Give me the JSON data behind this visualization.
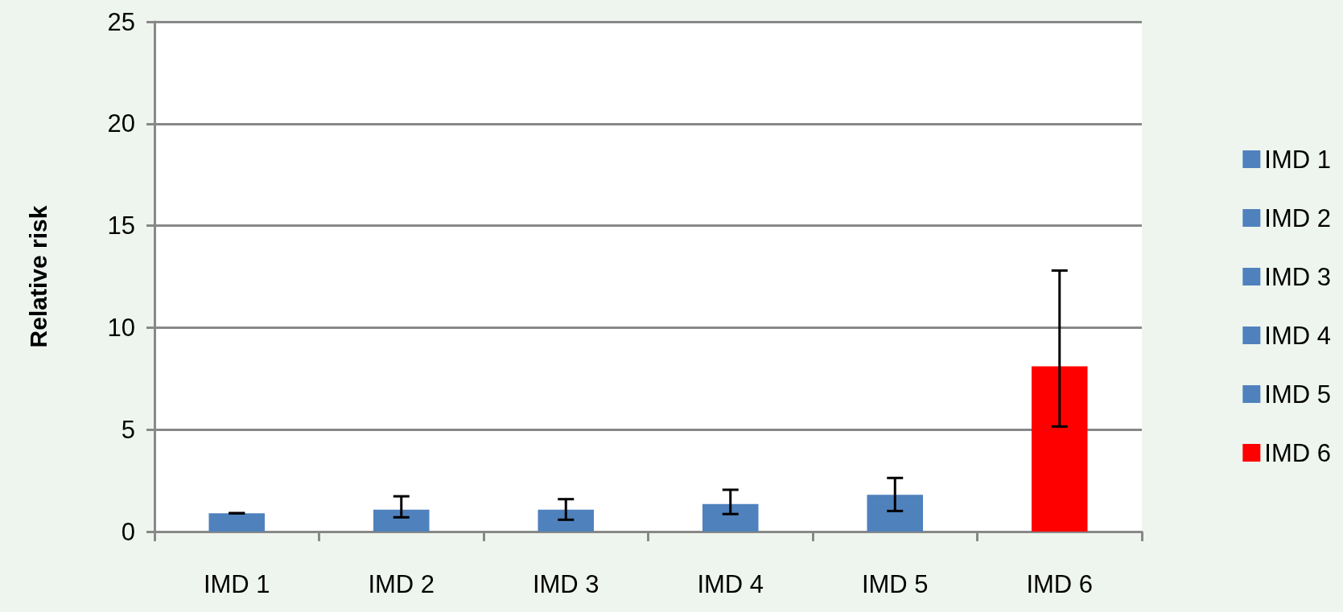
{
  "chart_data": {
    "type": "bar",
    "ylabel": "Relative risk",
    "categories": [
      "IMD 1",
      "IMD 2",
      "IMD 3",
      "IMD 4",
      "IMD 5",
      "IMD 6"
    ],
    "series": [
      {
        "name": "IMD 1",
        "color": "#4f81bd",
        "values": [
          0.9,
          null,
          null,
          null,
          null,
          null
        ],
        "errors": [
          [
            0.9,
            0.9
          ],
          null,
          null,
          null,
          null,
          null
        ]
      },
      {
        "name": "IMD 2",
        "color": "#4f81bd",
        "values": [
          null,
          1.07,
          null,
          null,
          null,
          null
        ],
        "errors": [
          null,
          [
            0.7,
            1.73
          ],
          null,
          null,
          null,
          null
        ]
      },
      {
        "name": "IMD 3",
        "color": "#4f81bd",
        "values": [
          null,
          null,
          1.07,
          null,
          null,
          null
        ],
        "errors": [
          null,
          null,
          [
            0.58,
            1.59
          ],
          null,
          null,
          null
        ]
      },
      {
        "name": "IMD 4",
        "color": "#4f81bd",
        "values": [
          null,
          null,
          null,
          1.35,
          null,
          null
        ],
        "errors": [
          null,
          null,
          null,
          [
            0.86,
            2.05
          ],
          null,
          null
        ]
      },
      {
        "name": "IMD 5",
        "color": "#4f81bd",
        "values": [
          null,
          null,
          null,
          null,
          1.8,
          null
        ],
        "errors": [
          null,
          null,
          null,
          null,
          [
            1.01,
            2.63
          ],
          null
        ]
      },
      {
        "name": "IMD 6",
        "color": "#ff0000",
        "values": [
          null,
          null,
          null,
          null,
          null,
          8.1
        ],
        "errors": [
          null,
          null,
          null,
          null,
          null,
          [
            5.15,
            12.8
          ]
        ]
      }
    ],
    "ylim": [
      0,
      25
    ],
    "yticks": [
      0,
      5,
      10,
      15,
      20,
      25
    ],
    "grid": "y",
    "legend": "right"
  }
}
